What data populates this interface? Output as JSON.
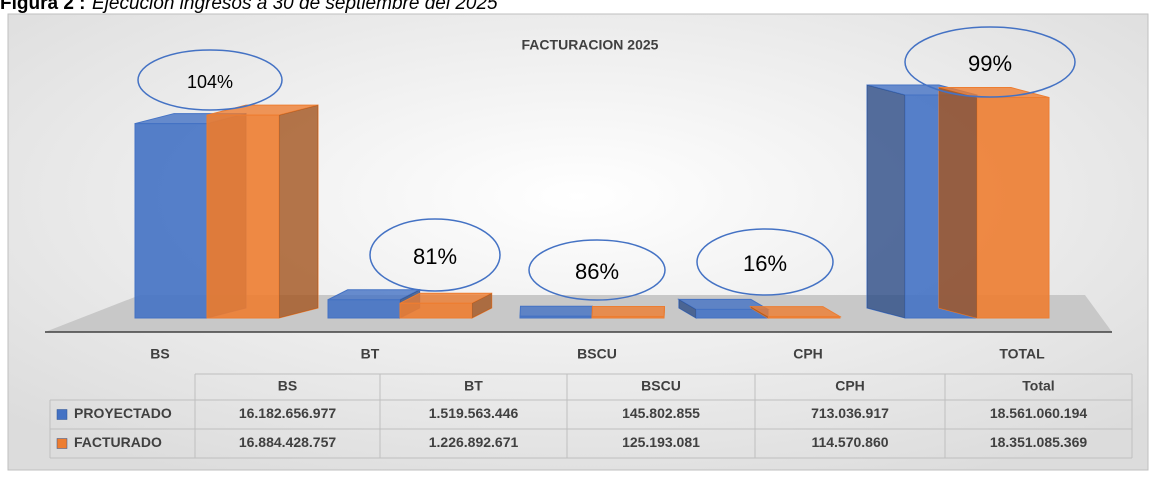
{
  "caption": {
    "label": "Figura 2 :",
    "text": "Ejecución ingresos a 30 de septiembre del 2025"
  },
  "chart_data": {
    "type": "bar3d",
    "title": "FACTURACION 2025",
    "categories": [
      "BS",
      "BT",
      "BSCU",
      "CPH",
      "TOTAL"
    ],
    "series": [
      {
        "name": "PROYECTADO",
        "color": "#4472c4",
        "values": [
          16182656977,
          1519563446,
          145802855,
          713036917,
          18561060194
        ],
        "value_labels": [
          "16.182.656.977",
          "1.519.563.446",
          "145.802.855",
          "713.036.917",
          "18.561.060.194"
        ]
      },
      {
        "name": "FACTURADO",
        "color": "#ed7d31",
        "values": [
          16884428757,
          1226892671,
          125193081,
          114570860,
          18351085369
        ],
        "value_labels": [
          "16.884.428.757",
          "1.226.892.671",
          "125.193.081",
          "114.570.860",
          "18.351.085.369"
        ]
      }
    ],
    "annotations": [
      {
        "value": 104,
        "label": "104%"
      },
      {
        "value": 81,
        "label": "81%"
      },
      {
        "value": 86,
        "label": "86%"
      },
      {
        "value": 16,
        "label": "16%"
      },
      {
        "value": 99,
        "label": "99%"
      }
    ],
    "table_columns": [
      "BS",
      "BT",
      "BSCU",
      "CPH",
      "Total"
    ]
  }
}
